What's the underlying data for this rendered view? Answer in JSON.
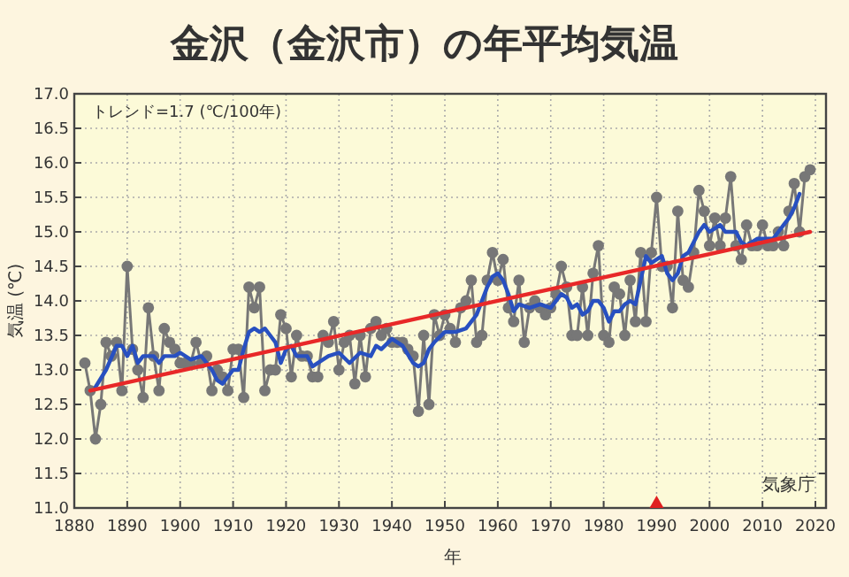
{
  "chart_data": {
    "type": "line",
    "title": "金沢（金沢市）の年平均気温",
    "xlabel": "年",
    "ylabel": "気温 (℃)",
    "annotations": [
      "トレンド=1.7 (℃/100年)",
      "気象庁"
    ],
    "xlim": [
      1880,
      2022
    ],
    "xticks": [
      1880,
      1890,
      1900,
      1910,
      1920,
      1930,
      1940,
      1950,
      1960,
      1970,
      1980,
      1990,
      2000,
      2010,
      2020
    ],
    "ylim": [
      11,
      17
    ],
    "yticks": [
      {
        "value": 11,
        "label": "11.0"
      },
      {
        "value": 11.5,
        "label": "11.5"
      },
      {
        "value": 12,
        "label": "12.0"
      },
      {
        "value": 12.5,
        "label": "12.5"
      },
      {
        "value": 13,
        "label": "13.0"
      },
      {
        "value": 13.5,
        "label": "13.5"
      },
      {
        "value": 14,
        "label": "14.0"
      },
      {
        "value": 14.5,
        "label": "14.5"
      },
      {
        "value": 15,
        "label": "15.0"
      },
      {
        "value": 15.5,
        "label": "15.5"
      },
      {
        "value": 16,
        "label": "16.0"
      },
      {
        "value": 16.5,
        "label": "16.5"
      },
      {
        "value": 17,
        "label": "17.0"
      }
    ],
    "grid": true,
    "series": [
      {
        "color": "#777777",
        "marker": "circle",
        "x": [
          1882,
          1883,
          1884,
          1885,
          1886,
          1887,
          1888,
          1889,
          1890,
          1891,
          1892,
          1893,
          1894,
          1895,
          1896,
          1897,
          1898,
          1899,
          1900,
          1901,
          1902,
          1903,
          1904,
          1905,
          1906,
          1907,
          1908,
          1909,
          1910,
          1911,
          1912,
          1913,
          1914,
          1915,
          1916,
          1917,
          1918,
          1919,
          1920,
          1921,
          1922,
          1923,
          1924,
          1925,
          1926,
          1927,
          1928,
          1929,
          1930,
          1931,
          1932,
          1933,
          1934,
          1935,
          1936,
          1937,
          1938,
          1939,
          1940,
          1941,
          1942,
          1943,
          1944,
          1945,
          1946,
          1947,
          1948,
          1949,
          1950,
          1951,
          1952,
          1953,
          1954,
          1955,
          1956,
          1957,
          1958,
          1959,
          1960,
          1961,
          1962,
          1963,
          1964,
          1965,
          1966,
          1967,
          1968,
          1969,
          1970,
          1971,
          1972,
          1973,
          1974,
          1975,
          1976,
          1977,
          1978,
          1979,
          1980,
          1981,
          1982,
          1983,
          1984,
          1985,
          1986,
          1987,
          1988,
          1989,
          1990,
          1991,
          1992,
          1993,
          1994,
          1995,
          1996,
          1997,
          1998,
          1999,
          2000,
          2001,
          2002,
          2003,
          2004,
          2005,
          2006,
          2007,
          2008,
          2009,
          2010,
          2011,
          2012,
          2013,
          2014,
          2015,
          2016,
          2017,
          2018,
          2019
        ],
        "values": [
          13.1,
          12.7,
          12.0,
          12.5,
          13.4,
          13.2,
          13.4,
          12.7,
          14.5,
          13.3,
          13.0,
          12.6,
          13.9,
          13.2,
          12.7,
          13.6,
          13.4,
          13.3,
          13.1,
          13.1,
          13.1,
          13.4,
          13.1,
          13.2,
          12.7,
          13.0,
          12.9,
          12.7,
          13.3,
          13.3,
          12.6,
          14.2,
          13.9,
          14.2,
          12.7,
          13.0,
          13.0,
          13.8,
          13.6,
          12.9,
          13.5,
          13.2,
          13.2,
          12.9,
          12.9,
          13.5,
          13.4,
          13.7,
          13.0,
          13.4,
          13.5,
          12.8,
          13.5,
          12.9,
          13.6,
          13.7,
          13.5,
          13.6,
          13.4,
          13.4,
          13.4,
          13.3,
          13.2,
          12.4,
          13.5,
          12.5,
          13.8,
          13.5,
          13.8,
          13.6,
          13.4,
          13.9,
          14.0,
          14.3,
          13.4,
          13.5,
          14.3,
          14.7,
          14.3,
          14.6,
          13.9,
          13.7,
          14.3,
          13.4,
          13.9,
          14.0,
          13.9,
          13.8,
          13.9,
          14.1,
          14.5,
          14.2,
          13.5,
          13.5,
          14.2,
          13.5,
          14.4,
          14.8,
          13.5,
          13.4,
          14.2,
          14.1,
          13.5,
          14.3,
          13.7,
          14.7,
          13.7,
          14.7,
          15.5,
          14.5,
          14.5,
          13.9,
          15.3,
          14.3,
          14.2,
          14.7,
          15.6,
          15.3,
          14.8,
          15.2,
          14.8,
          15.2,
          15.8,
          14.8,
          14.6,
          15.1,
          14.8,
          14.8,
          15.1,
          14.8,
          14.8,
          15.0,
          14.8,
          15.3,
          15.7,
          15.0,
          15.8,
          15.9
        ]
      },
      {
        "color": "#2850c0",
        "marker": "none",
        "x": [
          1884,
          1886,
          1888,
          1889,
          1890,
          1891,
          1892,
          1893,
          1894,
          1895,
          1896,
          1897,
          1898,
          1899,
          1900,
          1902,
          1904,
          1906,
          1907,
          1908,
          1910,
          1911,
          1912,
          1913,
          1914,
          1915,
          1916,
          1917,
          1918,
          1919,
          1920,
          1921,
          1922,
          1924,
          1925,
          1926,
          1928,
          1930,
          1932,
          1934,
          1936,
          1937,
          1938,
          1940,
          1942,
          1944,
          1945,
          1946,
          1947,
          1948,
          1950,
          1952,
          1954,
          1956,
          1958,
          1959,
          1960,
          1961,
          1962,
          1963,
          1964,
          1966,
          1968,
          1970,
          1972,
          1973,
          1974,
          1975,
          1976,
          1977,
          1978,
          1979,
          1980,
          1981,
          1982,
          1983,
          1984,
          1985,
          1986,
          1987,
          1988,
          1989,
          1990,
          1991,
          1992,
          1993,
          1994,
          1995,
          1996,
          1997,
          1998,
          1999,
          2000,
          2001,
          2002,
          2003,
          2004,
          2005,
          2006,
          2007,
          2008,
          2009,
          2010,
          2011,
          2012,
          2013,
          2014,
          2015,
          2016,
          2017
        ],
        "values": [
          12.75,
          13.0,
          13.35,
          13.35,
          13.2,
          13.35,
          13.1,
          13.2,
          13.2,
          13.2,
          13.1,
          13.2,
          13.2,
          13.2,
          13.25,
          13.15,
          13.2,
          13.0,
          12.85,
          12.8,
          13.0,
          13.0,
          13.3,
          13.55,
          13.6,
          13.55,
          13.6,
          13.5,
          13.4,
          13.1,
          13.3,
          13.35,
          13.2,
          13.2,
          13.05,
          13.1,
          13.2,
          13.25,
          13.1,
          13.25,
          13.2,
          13.35,
          13.3,
          13.45,
          13.35,
          13.1,
          13.05,
          13.1,
          13.3,
          13.4,
          13.55,
          13.55,
          13.6,
          13.8,
          14.2,
          14.35,
          14.4,
          14.3,
          14.1,
          13.85,
          13.95,
          13.9,
          13.95,
          13.9,
          14.1,
          14.05,
          13.9,
          13.95,
          13.8,
          13.85,
          14.0,
          14.0,
          13.9,
          13.7,
          13.85,
          13.85,
          13.95,
          14.0,
          13.95,
          14.3,
          14.65,
          14.55,
          14.6,
          14.65,
          14.4,
          14.3,
          14.4,
          14.65,
          14.7,
          14.85,
          15.0,
          15.1,
          15.0,
          15.05,
          15.1,
          15.0,
          15.0,
          15.0,
          14.85,
          14.8,
          14.85,
          14.9,
          14.9,
          14.9,
          14.9,
          15.0,
          15.1,
          15.2,
          15.35,
          15.55
        ]
      },
      {
        "color": "#e82828",
        "marker": "none",
        "x": [
          1883,
          2019
        ],
        "values": [
          12.7,
          15.0
        ]
      }
    ]
  }
}
